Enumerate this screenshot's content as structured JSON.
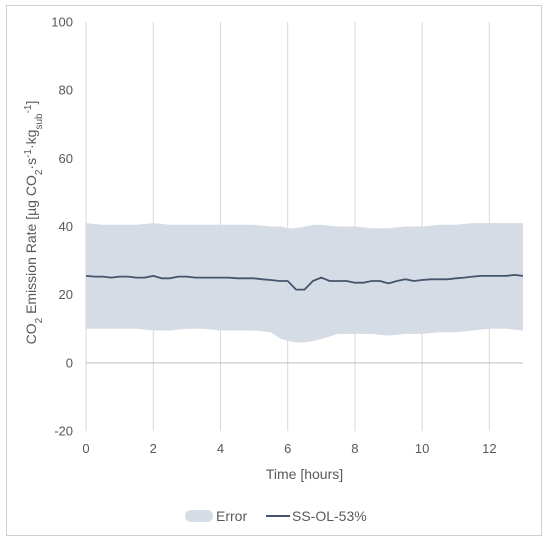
{
  "chart_data": {
    "type": "line",
    "title": "",
    "xlabel": "Time [hours]",
    "ylabel": {
      "parts": [
        {
          "t": "CO",
          "s": "n"
        },
        {
          "t": "2",
          "s": "sub"
        },
        {
          "t": " Emission Rate [µg CO",
          "s": "n"
        },
        {
          "t": "2",
          "s": "sub"
        },
        {
          "t": "·s",
          "s": "n"
        },
        {
          "t": "-1",
          "s": "sup"
        },
        {
          "t": "·kg",
          "s": "n"
        },
        {
          "t": "sub",
          "s": "sub"
        },
        {
          "t": "-1",
          "s": "sup"
        },
        {
          "t": "]",
          "s": "n"
        }
      ]
    },
    "xlim": [
      0,
      13
    ],
    "ylim": [
      -20,
      100
    ],
    "x_ticks": [
      0,
      2,
      4,
      6,
      8,
      10,
      12
    ],
    "y_ticks": [
      -20,
      0,
      20,
      40,
      60,
      80,
      100
    ],
    "grid": "vertical",
    "legend_position": "bottom",
    "colors": {
      "line": "#44546a",
      "band": "#d6dce5",
      "grid": "#d9d9d9",
      "axis": "#bfbfbf",
      "text": "#595959"
    },
    "series": [
      {
        "name": "Error",
        "kind": "band",
        "x": [
          0,
          0.5,
          1,
          1.5,
          2,
          2.5,
          3,
          3.5,
          4,
          4.5,
          5,
          5.5,
          5.8,
          6,
          6.2,
          6.5,
          6.8,
          7,
          7.5,
          8,
          8.5,
          9,
          9.5,
          10,
          10.5,
          11,
          11.5,
          12,
          12.5,
          13
        ],
        "upper": [
          41,
          40.5,
          40.5,
          40.5,
          41,
          40.5,
          40.5,
          40.5,
          40.5,
          40.5,
          40.5,
          40,
          40,
          39.5,
          39.5,
          40,
          40.5,
          40.5,
          40,
          40,
          39.5,
          39.5,
          40,
          40,
          40.5,
          40.5,
          41,
          41,
          41,
          41
        ],
        "lower": [
          10,
          10,
          10,
          10,
          9.5,
          9.5,
          10,
          10,
          9.5,
          9.5,
          9.5,
          9,
          7,
          6.5,
          6,
          6,
          6.5,
          7,
          8.5,
          8.5,
          8.5,
          8,
          8.5,
          8.5,
          9,
          9,
          9.5,
          10,
          10,
          9.5
        ]
      },
      {
        "name": "SS-OL-53%",
        "kind": "line",
        "x": [
          0,
          0.25,
          0.5,
          0.75,
          1,
          1.25,
          1.5,
          1.75,
          2,
          2.25,
          2.5,
          2.75,
          3,
          3.25,
          3.5,
          3.75,
          4,
          4.25,
          4.5,
          4.75,
          5,
          5.25,
          5.5,
          5.75,
          6,
          6.25,
          6.5,
          6.75,
          7,
          7.25,
          7.5,
          7.75,
          8,
          8.25,
          8.5,
          8.75,
          9,
          9.25,
          9.5,
          9.75,
          10,
          10.25,
          10.5,
          10.75,
          11,
          11.25,
          11.5,
          11.75,
          12,
          12.25,
          12.5,
          12.75,
          13
        ],
        "y": [
          25.5,
          25.3,
          25.3,
          25,
          25.3,
          25.3,
          25,
          25,
          25.5,
          24.8,
          24.8,
          25.3,
          25.3,
          25,
          25,
          25,
          25,
          25,
          24.8,
          24.8,
          24.8,
          24.5,
          24.3,
          24,
          24,
          21.5,
          21.5,
          24,
          25,
          24,
          24,
          24,
          23.5,
          23.5,
          24,
          24,
          23.3,
          24,
          24.5,
          24,
          24.3,
          24.5,
          24.5,
          24.5,
          24.8,
          25,
          25.3,
          25.5,
          25.5,
          25.5,
          25.5,
          25.8,
          25.5
        ]
      }
    ]
  }
}
